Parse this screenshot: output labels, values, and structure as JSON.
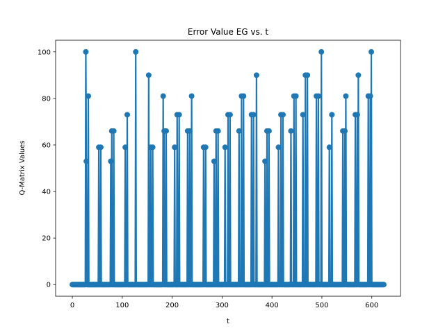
{
  "chart_data": {
    "type": "line",
    "title": "Error Value EG vs. t",
    "xlabel": "t",
    "ylabel": "Q-Matrix Values",
    "xlim": [
      -33.5,
      657.5
    ],
    "ylim": [
      -5,
      105
    ],
    "xticks": [
      0,
      100,
      200,
      300,
      400,
      500,
      600
    ],
    "yticks": [
      0,
      20,
      40,
      60,
      80,
      100
    ],
    "grid": false,
    "legend": "none",
    "markers": true,
    "x_range": [
      0,
      624
    ],
    "series": [
      {
        "color": "#1f77b4",
        "baseline": 0,
        "peaks": [
          {
            "x": 27,
            "y": 100
          },
          {
            "x": 28,
            "y": 53
          },
          {
            "x": 32,
            "y": 81
          },
          {
            "x": 53,
            "y": 59
          },
          {
            "x": 57,
            "y": 59
          },
          {
            "x": 77,
            "y": 53
          },
          {
            "x": 79,
            "y": 66
          },
          {
            "x": 83,
            "y": 66
          },
          {
            "x": 106,
            "y": 59
          },
          {
            "x": 110,
            "y": 73
          },
          {
            "x": 127,
            "y": 100
          },
          {
            "x": 153,
            "y": 90
          },
          {
            "x": 157,
            "y": 59
          },
          {
            "x": 161,
            "y": 59
          },
          {
            "x": 182,
            "y": 81
          },
          {
            "x": 184,
            "y": 66
          },
          {
            "x": 188,
            "y": 66
          },
          {
            "x": 205,
            "y": 59
          },
          {
            "x": 210,
            "y": 73
          },
          {
            "x": 214,
            "y": 73
          },
          {
            "x": 231,
            "y": 66
          },
          {
            "x": 235,
            "y": 66
          },
          {
            "x": 239,
            "y": 81
          },
          {
            "x": 263,
            "y": 59
          },
          {
            "x": 267,
            "y": 59
          },
          {
            "x": 284,
            "y": 53
          },
          {
            "x": 288,
            "y": 66
          },
          {
            "x": 292,
            "y": 66
          },
          {
            "x": 306,
            "y": 59
          },
          {
            "x": 312,
            "y": 73
          },
          {
            "x": 316,
            "y": 73
          },
          {
            "x": 334,
            "y": 66
          },
          {
            "x": 339,
            "y": 81
          },
          {
            "x": 343,
            "y": 81
          },
          {
            "x": 359,
            "y": 73
          },
          {
            "x": 363,
            "y": 73
          },
          {
            "x": 369,
            "y": 90
          },
          {
            "x": 386,
            "y": 53
          },
          {
            "x": 390,
            "y": 66
          },
          {
            "x": 394,
            "y": 66
          },
          {
            "x": 413,
            "y": 59
          },
          {
            "x": 418,
            "y": 73
          },
          {
            "x": 422,
            "y": 73
          },
          {
            "x": 438,
            "y": 66
          },
          {
            "x": 444,
            "y": 81
          },
          {
            "x": 448,
            "y": 81
          },
          {
            "x": 462,
            "y": 73
          },
          {
            "x": 467,
            "y": 90
          },
          {
            "x": 471,
            "y": 90
          },
          {
            "x": 489,
            "y": 81
          },
          {
            "x": 493,
            "y": 81
          },
          {
            "x": 499,
            "y": 100
          },
          {
            "x": 515,
            "y": 59
          },
          {
            "x": 520,
            "y": 73
          },
          {
            "x": 542,
            "y": 66
          },
          {
            "x": 546,
            "y": 66
          },
          {
            "x": 548,
            "y": 81
          },
          {
            "x": 567,
            "y": 73
          },
          {
            "x": 571,
            "y": 73
          },
          {
            "x": 573,
            "y": 90
          },
          {
            "x": 593,
            "y": 81
          },
          {
            "x": 597,
            "y": 81
          },
          {
            "x": 599,
            "y": 100
          }
        ]
      }
    ]
  }
}
